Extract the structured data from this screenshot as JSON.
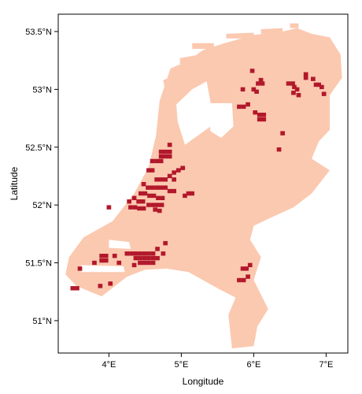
{
  "map": {
    "xlabel": "Longitude",
    "ylabel": "Latitude",
    "xlim": [
      3.3,
      7.3
    ],
    "ylim": [
      50.72,
      53.65
    ],
    "x_ticks": [
      {
        "value": 4,
        "label": "4°E"
      },
      {
        "value": 5,
        "label": "5°E"
      },
      {
        "value": 6,
        "label": "6°E"
      },
      {
        "value": 7,
        "label": "7°E"
      }
    ],
    "y_ticks": [
      {
        "value": 51.0,
        "label": "51°N"
      },
      {
        "value": 51.5,
        "label": "51.5°N"
      },
      {
        "value": 52.0,
        "label": "52°N"
      },
      {
        "value": 52.5,
        "label": "52.5°N"
      },
      {
        "value": 53.0,
        "label": "53°N"
      },
      {
        "value": 53.5,
        "label": "53.5°N"
      }
    ],
    "colors": {
      "land": "#fbc9b0",
      "urban": "#b2182b",
      "frame": "#000000",
      "background": "#ffffff"
    },
    "land_regions": [
      [
        [
          4.85,
          53.18
        ],
        [
          5.1,
          53.25
        ],
        [
          5.3,
          53.34
        ],
        [
          5.6,
          53.4
        ],
        [
          6.0,
          53.47
        ],
        [
          6.4,
          53.5
        ],
        [
          6.6,
          53.53
        ],
        [
          6.8,
          53.48
        ],
        [
          7.05,
          53.45
        ],
        [
          7.2,
          53.3
        ],
        [
          7.22,
          53.1
        ],
        [
          7.05,
          52.95
        ],
        [
          7.05,
          52.65
        ],
        [
          6.9,
          52.55
        ],
        [
          6.8,
          52.4
        ],
        [
          7.05,
          52.3
        ],
        [
          6.8,
          52.1
        ],
        [
          6.55,
          51.98
        ],
        [
          6.2,
          51.88
        ],
        [
          6.0,
          51.82
        ],
        [
          5.95,
          51.7
        ],
        [
          6.1,
          51.55
        ],
        [
          6.0,
          51.35
        ],
        [
          6.2,
          51.1
        ],
        [
          6.05,
          50.95
        ],
        [
          6.0,
          50.78
        ],
        [
          5.7,
          50.76
        ],
        [
          5.65,
          51.05
        ],
        [
          5.75,
          51.2
        ],
        [
          5.5,
          51.28
        ],
        [
          5.1,
          51.42
        ],
        [
          4.8,
          51.45
        ],
        [
          4.5,
          51.44
        ],
        [
          4.25,
          51.38
        ],
        [
          3.9,
          51.21
        ],
        [
          3.55,
          51.3
        ],
        [
          3.4,
          51.4
        ],
        [
          3.45,
          51.55
        ],
        [
          3.65,
          51.72
        ],
        [
          4.05,
          51.86
        ],
        [
          4.35,
          52.1
        ],
        [
          4.55,
          52.33
        ],
        [
          4.65,
          52.6
        ],
        [
          4.7,
          52.9
        ],
        [
          4.85,
          53.18
        ]
      ],
      [
        [
          5.1,
          52.46
        ],
        [
          5.45,
          52.62
        ],
        [
          5.85,
          52.55
        ],
        [
          5.8,
          52.4
        ],
        [
          5.45,
          52.3
        ],
        [
          5.1,
          52.46
        ]
      ]
    ],
    "water_regions": [
      [
        [
          5.05,
          52.52
        ],
        [
          5.45,
          52.7
        ],
        [
          5.4,
          52.9
        ],
        [
          5.35,
          53.07
        ],
        [
          5.15,
          53.0
        ],
        [
          4.93,
          52.87
        ],
        [
          4.95,
          52.72
        ],
        [
          5.05,
          52.52
        ]
      ],
      [
        [
          5.4,
          52.88
        ],
        [
          5.7,
          52.88
        ],
        [
          5.72,
          52.68
        ],
        [
          5.55,
          52.58
        ],
        [
          5.4,
          52.64
        ],
        [
          5.4,
          52.88
        ]
      ],
      [
        [
          4.0,
          51.7
        ],
        [
          4.28,
          51.68
        ],
        [
          4.3,
          51.62
        ],
        [
          4.0,
          51.63
        ],
        [
          4.0,
          51.7
        ]
      ],
      [
        [
          3.62,
          51.48
        ],
        [
          4.2,
          51.47
        ],
        [
          4.22,
          51.42
        ],
        [
          3.62,
          51.42
        ],
        [
          3.62,
          51.48
        ]
      ]
    ],
    "islands": [
      [
        [
          4.75,
          53.08
        ],
        [
          4.9,
          53.12
        ],
        [
          4.92,
          52.99
        ],
        [
          4.78,
          52.98
        ],
        [
          4.75,
          53.08
        ]
      ],
      [
        [
          4.98,
          53.27
        ],
        [
          5.25,
          53.3
        ],
        [
          5.26,
          53.24
        ],
        [
          4.98,
          53.22
        ],
        [
          4.98,
          53.27
        ]
      ],
      [
        [
          5.15,
          53.4
        ],
        [
          5.45,
          53.4
        ],
        [
          5.45,
          53.35
        ],
        [
          5.15,
          53.35
        ],
        [
          5.15,
          53.4
        ]
      ],
      [
        [
          5.62,
          53.48
        ],
        [
          6.0,
          53.49
        ],
        [
          6.0,
          53.44
        ],
        [
          5.62,
          53.44
        ],
        [
          5.62,
          53.48
        ]
      ],
      [
        [
          6.1,
          53.52
        ],
        [
          6.4,
          53.53
        ],
        [
          6.4,
          53.48
        ],
        [
          6.1,
          53.48
        ],
        [
          6.1,
          53.52
        ]
      ],
      [
        [
          6.5,
          53.57
        ],
        [
          6.62,
          53.57
        ],
        [
          6.62,
          53.53
        ],
        [
          6.5,
          53.53
        ],
        [
          6.5,
          53.57
        ]
      ]
    ],
    "urban_cells": [
      [
        4.72,
        52.46
      ],
      [
        4.78,
        52.46
      ],
      [
        4.84,
        52.46
      ],
      [
        4.72,
        52.42
      ],
      [
        4.78,
        52.42
      ],
      [
        4.84,
        52.42
      ],
      [
        4.6,
        52.38
      ],
      [
        4.66,
        52.38
      ],
      [
        4.72,
        52.38
      ],
      [
        4.84,
        52.52
      ],
      [
        4.55,
        52.3
      ],
      [
        4.6,
        52.3
      ],
      [
        4.66,
        52.22
      ],
      [
        4.72,
        52.22
      ],
      [
        4.78,
        52.22
      ],
      [
        4.84,
        52.25
      ],
      [
        4.9,
        52.28
      ],
      [
        4.96,
        52.3
      ],
      [
        5.02,
        52.32
      ],
      [
        4.48,
        52.18
      ],
      [
        4.54,
        52.15
      ],
      [
        4.6,
        52.15
      ],
      [
        4.66,
        52.15
      ],
      [
        4.72,
        52.15
      ],
      [
        4.78,
        52.15
      ],
      [
        4.84,
        52.12
      ],
      [
        4.9,
        52.12
      ],
      [
        4.44,
        52.1
      ],
      [
        4.5,
        52.1
      ],
      [
        4.56,
        52.08
      ],
      [
        4.62,
        52.08
      ],
      [
        4.68,
        52.06
      ],
      [
        4.74,
        52.06
      ],
      [
        4.35,
        52.06
      ],
      [
        4.41,
        52.03
      ],
      [
        4.47,
        52.03
      ],
      [
        4.55,
        52.0
      ],
      [
        4.61,
        52.0
      ],
      [
        4.67,
        52.0
      ],
      [
        4.73,
        52.0
      ],
      [
        4.28,
        52.03
      ],
      [
        4.3,
        51.98
      ],
      [
        4.36,
        51.98
      ],
      [
        4.42,
        51.97
      ],
      [
        4.48,
        51.97
      ],
      [
        4.64,
        51.96
      ],
      [
        4.7,
        51.95
      ],
      [
        4.0,
        51.98
      ],
      [
        4.9,
        52.22
      ],
      [
        5.05,
        52.08
      ],
      [
        5.1,
        52.1
      ],
      [
        5.15,
        52.1
      ],
      [
        4.25,
        51.58
      ],
      [
        4.31,
        51.58
      ],
      [
        4.37,
        51.58
      ],
      [
        4.43,
        51.58
      ],
      [
        4.49,
        51.58
      ],
      [
        4.55,
        51.58
      ],
      [
        4.61,
        51.58
      ],
      [
        4.37,
        51.54
      ],
      [
        4.43,
        51.54
      ],
      [
        4.49,
        51.54
      ],
      [
        4.55,
        51.54
      ],
      [
        4.61,
        51.54
      ],
      [
        4.67,
        51.54
      ],
      [
        4.43,
        51.5
      ],
      [
        4.49,
        51.5
      ],
      [
        4.55,
        51.5
      ],
      [
        4.61,
        51.5
      ],
      [
        4.35,
        51.48
      ],
      [
        4.67,
        51.62
      ],
      [
        3.9,
        51.56
      ],
      [
        3.96,
        51.56
      ],
      [
        3.9,
        51.52
      ],
      [
        3.96,
        51.52
      ],
      [
        4.14,
        51.5
      ],
      [
        4.08,
        51.56
      ],
      [
        3.6,
        51.45
      ],
      [
        3.5,
        51.28
      ],
      [
        3.56,
        51.28
      ],
      [
        3.8,
        51.5
      ],
      [
        3.88,
        51.3
      ],
      [
        4.02,
        51.32
      ],
      [
        4.75,
        51.58
      ],
      [
        4.78,
        51.67
      ],
      [
        5.85,
        51.45
      ],
      [
        5.9,
        51.45
      ],
      [
        5.95,
        51.48
      ],
      [
        5.8,
        51.35
      ],
      [
        5.86,
        51.35
      ],
      [
        5.92,
        51.38
      ],
      [
        6.1,
        53.08
      ],
      [
        6.06,
        53.05
      ],
      [
        6.12,
        53.05
      ],
      [
        6.0,
        53.0
      ],
      [
        6.04,
        52.98
      ],
      [
        5.85,
        53.0
      ],
      [
        5.8,
        52.85
      ],
      [
        5.86,
        52.85
      ],
      [
        5.92,
        52.87
      ],
      [
        6.02,
        52.8
      ],
      [
        6.08,
        52.78
      ],
      [
        6.14,
        52.78
      ],
      [
        6.08,
        52.74
      ],
      [
        6.14,
        52.74
      ],
      [
        5.98,
        53.16
      ],
      [
        6.48,
        53.05
      ],
      [
        6.54,
        53.05
      ],
      [
        6.56,
        53.02
      ],
      [
        6.6,
        53.0
      ],
      [
        6.55,
        52.97
      ],
      [
        6.62,
        52.95
      ],
      [
        6.72,
        53.13
      ],
      [
        6.72,
        53.1
      ],
      [
        6.82,
        53.09
      ],
      [
        6.86,
        53.04
      ],
      [
        6.9,
        53.04
      ],
      [
        6.94,
        53.02
      ],
      [
        6.97,
        52.96
      ],
      [
        6.35,
        52.48
      ],
      [
        6.4,
        52.62
      ]
    ],
    "urban_cell_size": [
      0.062,
      0.037
    ]
  }
}
